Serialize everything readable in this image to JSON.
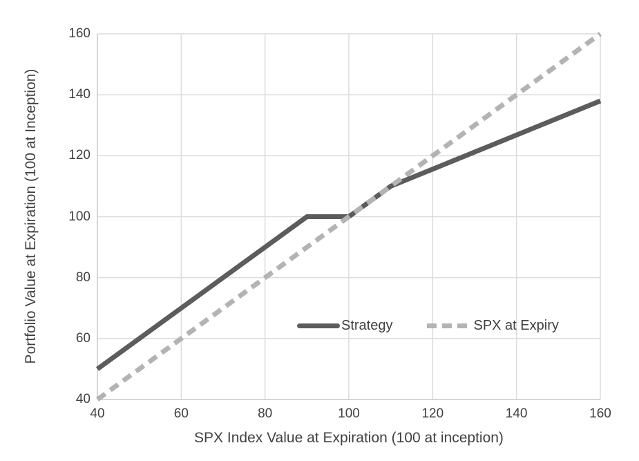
{
  "chart_data": {
    "type": "line",
    "title": "",
    "xlabel": "SPX Index Value at Expiration (100 at inception)",
    "ylabel": "Portfolio Value at Expiration (100 at Inception)",
    "xlim": [
      40,
      160
    ],
    "ylim": [
      40,
      160
    ],
    "x_ticks": [
      40,
      60,
      80,
      100,
      120,
      140,
      160
    ],
    "y_ticks": [
      40,
      60,
      80,
      100,
      120,
      140,
      160
    ],
    "grid": true,
    "legend_position": "inside bottom-center",
    "series": [
      {
        "name": "Strategy",
        "line_style": "solid",
        "line_width": 7,
        "color": "#5c5c5c",
        "points": [
          [
            40,
            50
          ],
          [
            90,
            100
          ],
          [
            100,
            100
          ],
          [
            110,
            110
          ],
          [
            160,
            138
          ]
        ]
      },
      {
        "name": "SPX at Expiry",
        "line_style": "dashed",
        "line_width": 7,
        "color": "#b3b3b3",
        "points": [
          [
            40,
            40
          ],
          [
            160,
            160
          ]
        ]
      }
    ],
    "colors": {
      "background": "#ffffff",
      "gridline": "#dcdcdc",
      "axis_line": "#c9c9c9",
      "text": "#404040"
    }
  }
}
